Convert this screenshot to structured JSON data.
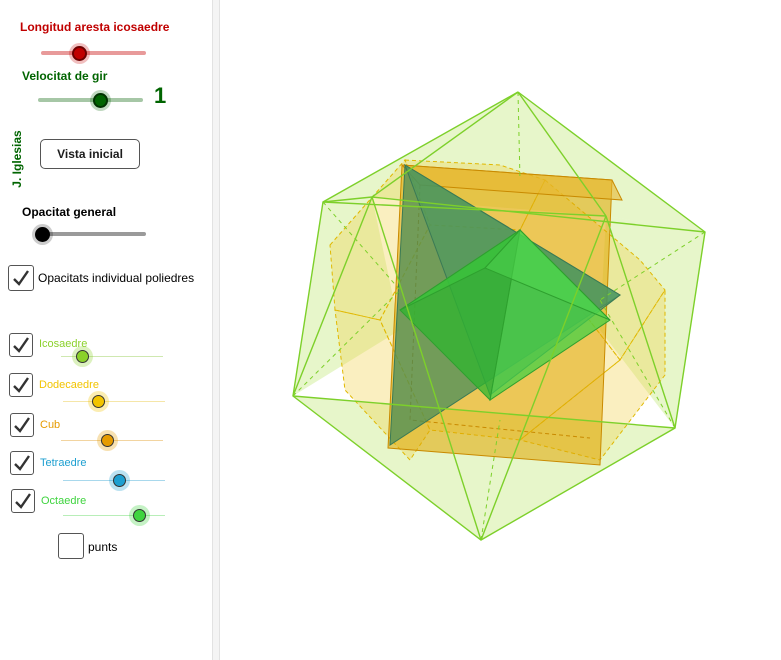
{
  "sliders": {
    "edge_length": {
      "label": "Longitud aresta icosaedre",
      "color": "#c00000",
      "level": 0.36
    },
    "rotation_speed": {
      "label": "Velocitat de gir",
      "color": "#006400",
      "value_text": "1",
      "level": 0.6
    },
    "general_opacity": {
      "label": "Opacitat general",
      "color": "#000000",
      "level": 0.0
    }
  },
  "author": "J. Iglesias",
  "initial_view_button": "Vista inicial",
  "individual_opacity": {
    "label": "Opacitats individual poliedres",
    "checked": true
  },
  "polyhedra": [
    {
      "label": "Icosaedre",
      "color": "#8bd12b",
      "checked": true,
      "level": 0.2
    },
    {
      "label": "Dodecaedre",
      "color": "#f2c400",
      "checked": true,
      "level": 0.35
    },
    {
      "label": "Cub",
      "color": "#e69b00",
      "checked": true,
      "level": 0.45
    },
    {
      "label": "Tetraedre",
      "color": "#1d9fd0",
      "checked": true,
      "level": 0.55
    },
    {
      "label": "Octaedre",
      "color": "#3fd43f",
      "checked": true,
      "level": 0.75
    }
  ],
  "points": {
    "label": "punts",
    "checked": false
  }
}
